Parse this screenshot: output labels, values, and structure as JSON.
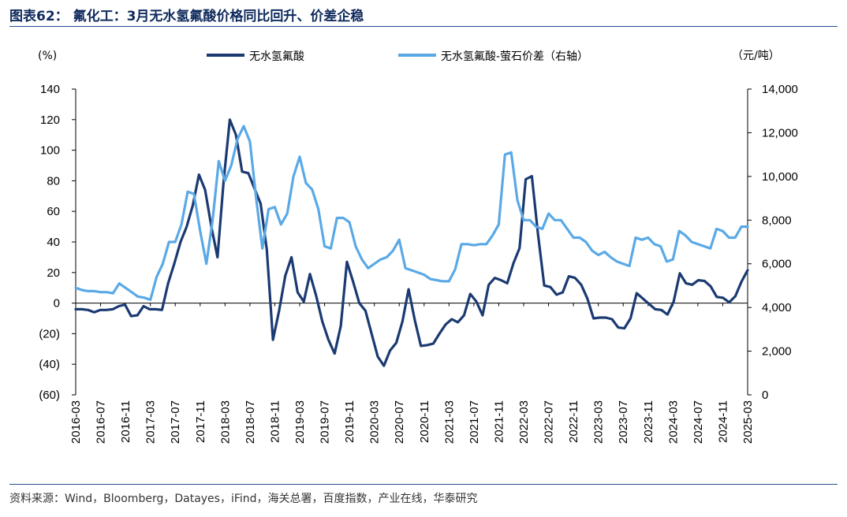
{
  "figure": {
    "title": "图表62： 氟化工：3月无水氢氟酸价格同比回升、价差企稳",
    "source": "资料来源：Wind，Bloomberg，Datayes，iFind，海关总署，百度指数，产业在线，华泰研究"
  },
  "chart_data": {
    "type": "line",
    "title": "",
    "left_axis": {
      "unit_label": "(%)",
      "ylim": [
        -60,
        140
      ],
      "ticks": [
        -60,
        -40,
        -20,
        0,
        20,
        40,
        60,
        80,
        100,
        120,
        140
      ],
      "tick_labels": [
        "(60)",
        "(40)",
        "(20)",
        "0",
        "20",
        "40",
        "60",
        "80",
        "100",
        "120",
        "140"
      ]
    },
    "right_axis": {
      "unit_label": "（元/吨）",
      "ylim": [
        0,
        14000
      ],
      "ticks": [
        0,
        2000,
        4000,
        6000,
        8000,
        10000,
        12000,
        14000
      ],
      "tick_labels": [
        "0",
        "2,000",
        "4,000",
        "6,000",
        "8,000",
        "10,000",
        "12,000",
        "14,000"
      ]
    },
    "x_labels": [
      "2016-03",
      "2016-07",
      "2016-11",
      "2017-03",
      "2017-07",
      "2017-11",
      "2018-03",
      "2018-07",
      "2018-11",
      "2019-03",
      "2019-07",
      "2019-11",
      "2020-03",
      "2020-07",
      "2020-11",
      "2021-03",
      "2021-07",
      "2021-11",
      "2022-03",
      "2022-07",
      "2022-11",
      "2023-03",
      "2023-07",
      "2023-11",
      "2024-03",
      "2024-07",
      "2024-11",
      "2025-03"
    ],
    "x_start": "2016-03",
    "x_end": "2025-03",
    "legend_position": "top",
    "grid": false,
    "series": [
      {
        "name": "无水氢氟酸",
        "axis": "left",
        "color": "#1b3a72",
        "values": [
          -4,
          -4,
          -4.5,
          -6,
          -4.5,
          -4.5,
          -4,
          -2,
          -1,
          -8.5,
          -8,
          -2,
          -4,
          -4,
          -4.5,
          13,
          26,
          40,
          50,
          64,
          84,
          74,
          50,
          30,
          80,
          120,
          110,
          86,
          85,
          75,
          65,
          35,
          -24,
          -5,
          18,
          30,
          7,
          1,
          19,
          5,
          -12,
          -24,
          -33,
          -15,
          27,
          14,
          0,
          -5,
          -20,
          -35,
          -41,
          -31,
          -26,
          -12,
          9,
          -11,
          -28,
          -27.5,
          -26.5,
          -20,
          -14,
          -10.5,
          -12.5,
          -8,
          6,
          1,
          -8,
          12,
          16.5,
          15,
          13,
          26,
          36,
          81,
          83,
          45,
          11.5,
          10.5,
          5.5,
          7,
          17.5,
          16.5,
          12,
          3,
          -10,
          -9.5,
          -9.5,
          -10.5,
          -16,
          -16.5,
          -10,
          6.5,
          3,
          -0.5,
          -4,
          -4.5,
          -7.5,
          1,
          19.5,
          13,
          12,
          15,
          14.5,
          11,
          4,
          3.5,
          0.5,
          4.5,
          14,
          21.5
        ]
      },
      {
        "name": "无水氢氟酸-萤石价差（右轴）",
        "axis": "right",
        "color": "#5aa9e6",
        "values": [
          4900,
          4800,
          4750,
          4750,
          4700,
          4700,
          4650,
          5100,
          4900,
          4700,
          4500,
          4450,
          4350,
          5400,
          6000,
          7000,
          7000,
          7800,
          9300,
          9200,
          7500,
          6000,
          8000,
          10700,
          9800,
          10500,
          11700,
          12300,
          11600,
          9000,
          6700,
          8500,
          8600,
          7800,
          8300,
          10000,
          10900,
          9700,
          9400,
          8500,
          6800,
          6700,
          8100,
          8100,
          7900,
          6800,
          6200,
          5800,
          6000,
          6200,
          6300,
          6600,
          7100,
          5800,
          5700,
          5600,
          5500,
          5300,
          5250,
          5200,
          5200,
          5750,
          6900,
          6900,
          6850,
          6900,
          6900,
          7300,
          7800,
          11000,
          11100,
          8900,
          8000,
          8000,
          7700,
          7600,
          8300,
          8000,
          8000,
          7600,
          7200,
          7200,
          7000,
          6600,
          6400,
          6550,
          6300,
          6100,
          6000,
          5900,
          7200,
          7100,
          7200,
          6900,
          6800,
          6100,
          6200,
          7500,
          7300,
          7000,
          6900,
          6800,
          6700,
          7600,
          7500,
          7200,
          7200,
          7700,
          7700
        ]
      }
    ]
  }
}
